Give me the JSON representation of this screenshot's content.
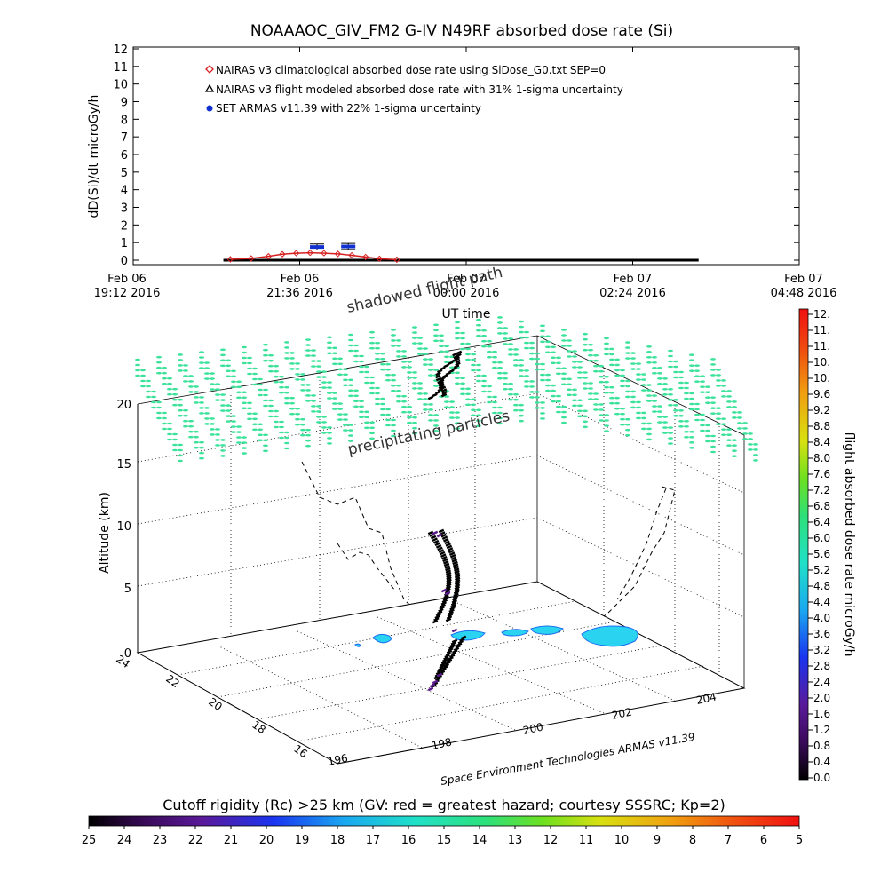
{
  "title": "NOAAAOC_GIV_FM2 G-IV    N49RF   absorbed dose rate (Si)",
  "chart_data": [
    {
      "type": "line",
      "title": "NOAAAOC_GIV_FM2 G-IV    N49RF   absorbed dose rate (Si)",
      "ylabel": "dD(Si)/dt microGy/h",
      "xlabel": "UT time",
      "ylim": [
        0,
        12
      ],
      "yticks": [
        "0",
        "1",
        "2",
        "3",
        "4",
        "5",
        "6",
        "7",
        "8",
        "9",
        "10",
        "11",
        "12"
      ],
      "xticks": [
        {
          "line1": "Feb 06",
          "line2": "19:12 2016"
        },
        {
          "line1": "Feb 06",
          "line2": "21:36 2016"
        },
        {
          "line1": "Feb 07",
          "line2": "00:00 2016"
        },
        {
          "line1": "Feb 07",
          "line2": "02:24 2016"
        },
        {
          "line1": "Feb 07",
          "line2": "04:48 2016"
        }
      ],
      "xlim_hours": [
        0,
        9.6
      ],
      "legend_position": "top-left",
      "series": [
        {
          "name": "NAIRAS v3 climatological absorbed dose rate using SiDose_G0.txt SEP=0",
          "color": "#d62020",
          "marker": "diamond",
          "points": [
            {
              "t": 1.4,
              "v": 0.05
            },
            {
              "t": 1.7,
              "v": 0.1
            },
            {
              "t": 1.95,
              "v": 0.22
            },
            {
              "t": 2.15,
              "v": 0.34
            },
            {
              "t": 2.35,
              "v": 0.4
            },
            {
              "t": 2.55,
              "v": 0.42
            },
            {
              "t": 2.75,
              "v": 0.4
            },
            {
              "t": 2.95,
              "v": 0.36
            },
            {
              "t": 3.15,
              "v": 0.28
            },
            {
              "t": 3.35,
              "v": 0.18
            },
            {
              "t": 3.55,
              "v": 0.08
            },
            {
              "t": 3.8,
              "v": 0.03
            }
          ]
        },
        {
          "name": "NAIRAS v3 flight modeled absorbed dose rate with 31% 1-sigma uncertainty",
          "color": "#000000",
          "marker": "triangle",
          "t_start": 1.3,
          "t_end": 8.15,
          "value": 0.0
        },
        {
          "name": "SET ARMAS v11.39 with 22% 1-sigma uncertainty",
          "color": "#1030d0",
          "marker": "circle",
          "points": [
            {
              "t": 2.65,
              "v": 0.75,
              "err": 0.17
            },
            {
              "t": 3.1,
              "v": 0.78,
              "err": 0.17
            }
          ]
        }
      ]
    },
    {
      "type": "scatter",
      "title": "",
      "zlabel": "Altitude (km)",
      "zticks": [
        "0",
        "5",
        "10",
        "15",
        "20"
      ],
      "latitude_ticks": [
        "24",
        "22",
        "20",
        "18",
        "16"
      ],
      "longitude_ticks": [
        "198",
        "200",
        "202",
        "204"
      ],
      "longitude_ticks_left": [
        "196",
        "198"
      ],
      "annotations": [
        "shadowed flight path",
        "precipitating particles"
      ],
      "credit": "Space Environment Technologies ARMAS v11.39",
      "flight_altitude_km_range": [
        0,
        10
      ],
      "precipitating_particle_level_km": 20
    }
  ],
  "colorbar_right": {
    "label": "flight absorbed dose rate microGy/h",
    "labels": [
      "12.",
      "11.",
      "11.",
      "10.",
      "10.",
      "9.6",
      "9.2",
      "8.8",
      "8.4",
      "8.0",
      "7.6",
      "7.2",
      "6.8",
      "6.4",
      "6.0",
      "5.6",
      "5.2",
      "4.8",
      "4.4",
      "4.0",
      "3.6",
      "3.2",
      "2.8",
      "2.4",
      "2.0",
      "1.6",
      "1.2",
      "0.8",
      "0.4",
      "0.0"
    ]
  },
  "colorbar_bottom": {
    "title": "Cutoff rigidity (Rc) >25 km (GV: red = greatest hazard; courtesy SSSRC; Kp=2)",
    "labels": [
      "25",
      "24",
      "23",
      "22",
      "21",
      "20",
      "19",
      "18",
      "17",
      "16",
      "15",
      "14",
      "13",
      "12",
      "11",
      "10",
      "9",
      "8",
      "7",
      "6",
      "5"
    ]
  },
  "colors": {
    "particle_green": "#3ce29a",
    "contour_cyan": "#2ad4f0",
    "contour_blue": "#1c6cf0",
    "track_black": "#000000",
    "track_purple": "#5c1a8c"
  }
}
